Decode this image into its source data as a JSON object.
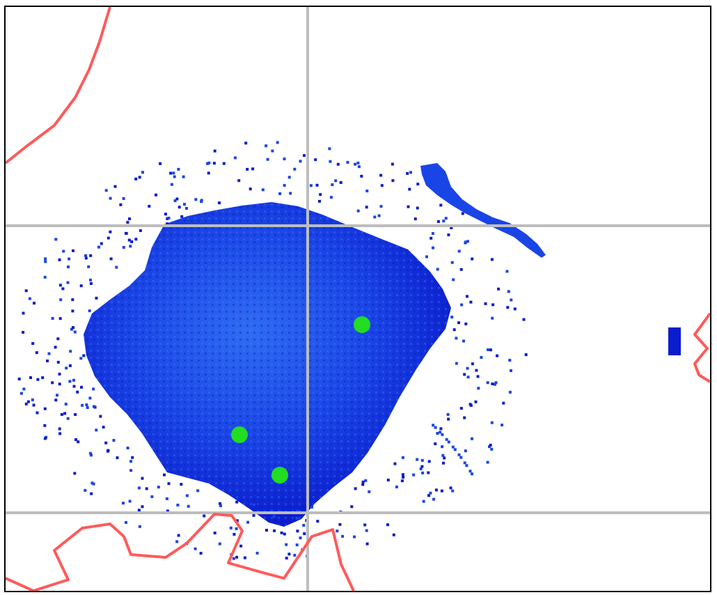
{
  "map": {
    "colors": {
      "background": "#ffffff",
      "frame": "#000000",
      "gridline": "#bdbdbd",
      "border_line": "#ff5a5a",
      "density_dark": "#0a1ccc",
      "density_mid": "#1a45e6",
      "density_light": "#2f6cf2",
      "marker": "#22dd22"
    },
    "legend_visible": false,
    "labels_visible": false
  }
}
